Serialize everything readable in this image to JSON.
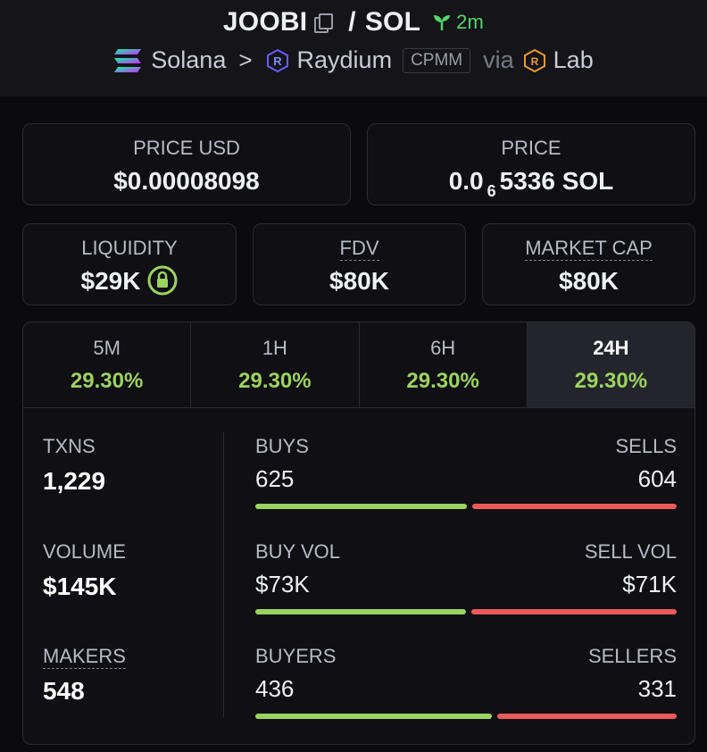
{
  "header": {
    "token": "JOOBI",
    "slash": "/",
    "quote": "SOL",
    "age": "2m",
    "chain": "Solana",
    "path_sep": ">",
    "dex": "Raydium",
    "pool_type": "CPMM",
    "via": "via",
    "launchpad": "Lab"
  },
  "prices": {
    "usd_label": "PRICE USD",
    "usd_value": "$0.00008098",
    "native_label": "PRICE",
    "native_prefix": "0.0",
    "native_zeros": "6",
    "native_digits": "5336 SOL"
  },
  "metrics": {
    "liquidity_label": "LIQUIDITY",
    "liquidity_value": "$29K",
    "fdv_label": "FDV",
    "fdv_value": "$80K",
    "mcap_label": "MARKET CAP",
    "mcap_value": "$80K"
  },
  "tabs": [
    {
      "label": "5M",
      "value": "29.30%"
    },
    {
      "label": "1H",
      "value": "29.30%"
    },
    {
      "label": "6H",
      "value": "29.30%"
    },
    {
      "label": "24H",
      "value": "29.30%"
    }
  ],
  "active_tab": "24H",
  "stats": {
    "txns_label": "TXNS",
    "txns_value": "1,229",
    "volume_label": "VOLUME",
    "volume_value": "$145K",
    "makers_label": "MAKERS",
    "makers_value": "548",
    "buys_label": "BUYS",
    "buys_value": "625",
    "sells_label": "SELLS",
    "sells_value": "604",
    "buys_fraction": 0.509,
    "buy_vol_label": "BUY VOL",
    "buy_vol_value": "$73K",
    "sell_vol_label": "SELL VOL",
    "sell_vol_value": "$71K",
    "buy_vol_fraction": 0.507,
    "buyers_label": "BUYERS",
    "buyers_value": "436",
    "sellers_label": "SELLERS",
    "sellers_value": "331",
    "buyers_fraction": 0.568
  },
  "colors": {
    "positive": "#9bd35f",
    "negative": "#eb5a5a",
    "age_green": "#53d769"
  }
}
